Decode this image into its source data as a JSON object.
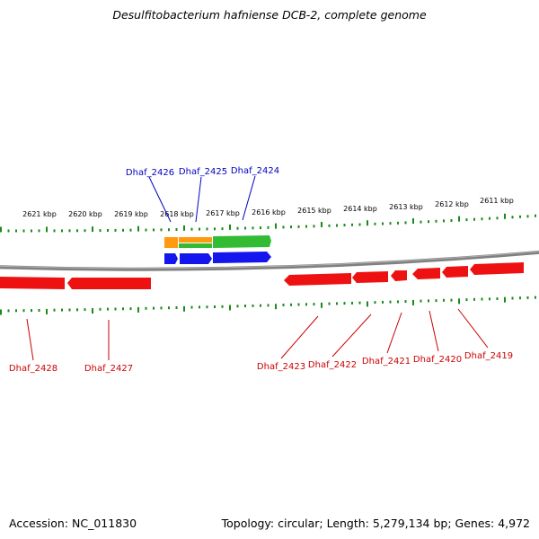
{
  "title": "Desulfitobacterium hafniense DCB-2, complete genome",
  "footer": {
    "accession": "Accession: NC_011830",
    "summary": "Topology: circular; Length: 5,279,134 bp; Genes: 4,972"
  },
  "colors": {
    "forward_label": "#0000c0",
    "reverse_label": "#cc0000",
    "tick": "#1a8a1a",
    "gene_red": "#ee1111",
    "gene_blue": "#1515ee",
    "gene_green": "#33bb33",
    "gene_orange": "#ff9910",
    "backbone": "#808080"
  },
  "scale_labels": [
    "2621 kbp",
    "2620 kbp",
    "2619 kbp",
    "2618 kbp",
    "2617 kbp",
    "2616 kbp",
    "2615 kbp",
    "2614 kbp",
    "2613 kbp",
    "2612 kbp",
    "2611 kbp"
  ],
  "forward_genes": [
    "Dhaf_2426",
    "Dhaf_2425",
    "Dhaf_2424"
  ],
  "reverse_genes": [
    "Dhaf_2428",
    "Dhaf_2427",
    "Dhaf_2423",
    "Dhaf_2422",
    "Dhaf_2421",
    "Dhaf_2420",
    "Dhaf_2419"
  ]
}
